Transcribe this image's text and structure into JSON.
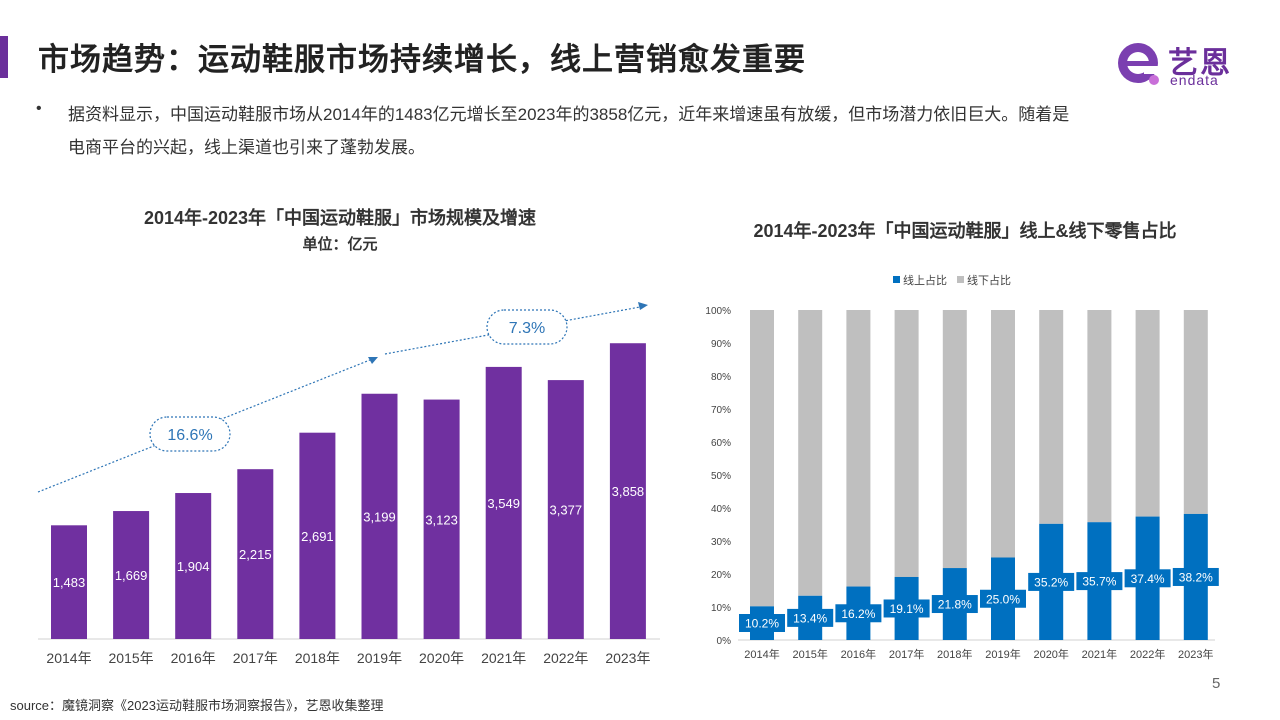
{
  "header": {
    "title": "市场趋势：运动鞋服市场持续增长，线上营销愈发重要",
    "accent_color": "#6b2f9b"
  },
  "logo": {
    "cn": "艺恩",
    "en": "endata"
  },
  "intro": {
    "bullet": "•",
    "text": "据资料显示，中国运动鞋服市场从2014年的1483亿元增长至2023年的3858亿元，近年来增速虽有放缓，但市场潜力依旧巨大。随着是电商平台的兴起，线上渠道也引来了蓬勃发展。"
  },
  "chart_data": [
    {
      "type": "bar",
      "title": "2014年-2023年「中国运动鞋服」市场规模及增速",
      "unit_label": "单位：亿元",
      "categories": [
        "2014年",
        "2015年",
        "2016年",
        "2017年",
        "2018年",
        "2019年",
        "2020年",
        "2021年",
        "2022年",
        "2023年"
      ],
      "values": [
        1483,
        1669,
        1904,
        2215,
        2691,
        3199,
        3123,
        3549,
        3377,
        3858
      ],
      "value_labels": [
        "1,483",
        "1,669",
        "1,904",
        "2,215",
        "2,691",
        "3,199",
        "3,123",
        "3,549",
        "3,377",
        "3,858"
      ],
      "ylim": [
        0,
        4500
      ],
      "bar_color": "#7030a0",
      "growth_annotations": [
        "16.6%",
        "7.3%"
      ],
      "annotation_color": "#2e75b6",
      "grid": false
    },
    {
      "type": "bar",
      "stacked": true,
      "title": "2014年-2023年「中国运动鞋服」线上&线下零售占比",
      "categories": [
        "2014年",
        "2015年",
        "2016年",
        "2017年",
        "2018年",
        "2019年",
        "2020年",
        "2021年",
        "2022年",
        "2023年"
      ],
      "series": [
        {
          "name": "线上占比",
          "color": "#0070c0",
          "values": [
            10.2,
            13.4,
            16.2,
            19.1,
            21.8,
            25.0,
            35.2,
            35.7,
            37.4,
            38.2
          ],
          "labels": [
            "10.2%",
            "13.4%",
            "16.2%",
            "19.1%",
            "21.8%",
            "25.0%",
            "35.2%",
            "35.7%",
            "37.4%",
            "38.2%"
          ]
        },
        {
          "name": "线下占比",
          "color": "#bfbfbf",
          "values": [
            89.8,
            86.6,
            83.8,
            80.9,
            78.2,
            75.0,
            64.8,
            64.3,
            62.6,
            61.8
          ]
        }
      ],
      "yticks": [
        "0%",
        "10%",
        "20%",
        "30%",
        "40%",
        "50%",
        "60%",
        "70%",
        "80%",
        "90%",
        "100%"
      ],
      "ylim": [
        0,
        100
      ],
      "legend_position": "top-center",
      "grid": false
    }
  ],
  "footer": {
    "source": "source：魔镜洞察《2023运动鞋服市场洞察报告》，艺恩收集整理",
    "page_number": "5"
  }
}
